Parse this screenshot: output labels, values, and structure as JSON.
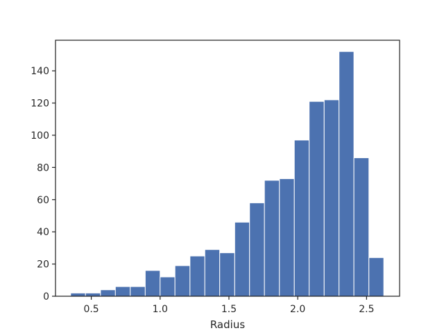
{
  "chart_data": {
    "type": "bar",
    "subtype": "histogram",
    "title": "",
    "xlabel": "Radius",
    "ylabel": "",
    "bins": [
      {
        "x0": 0.35,
        "x1": 0.458,
        "count": 2
      },
      {
        "x0": 0.458,
        "x1": 0.567,
        "count": 2
      },
      {
        "x0": 0.567,
        "x1": 0.675,
        "count": 4
      },
      {
        "x0": 0.675,
        "x1": 0.783,
        "count": 6
      },
      {
        "x0": 0.783,
        "x1": 0.892,
        "count": 6
      },
      {
        "x0": 0.892,
        "x1": 1.0,
        "count": 16
      },
      {
        "x0": 1.0,
        "x1": 1.108,
        "count": 12
      },
      {
        "x0": 1.108,
        "x1": 1.217,
        "count": 19
      },
      {
        "x0": 1.217,
        "x1": 1.325,
        "count": 25
      },
      {
        "x0": 1.325,
        "x1": 1.433,
        "count": 29
      },
      {
        "x0": 1.433,
        "x1": 1.542,
        "count": 27
      },
      {
        "x0": 1.542,
        "x1": 1.65,
        "count": 46
      },
      {
        "x0": 1.65,
        "x1": 1.758,
        "count": 58
      },
      {
        "x0": 1.758,
        "x1": 1.867,
        "count": 72
      },
      {
        "x0": 1.867,
        "x1": 1.975,
        "count": 73
      },
      {
        "x0": 1.975,
        "x1": 2.083,
        "count": 97
      },
      {
        "x0": 2.083,
        "x1": 2.192,
        "count": 121
      },
      {
        "x0": 2.192,
        "x1": 2.3,
        "count": 122
      },
      {
        "x0": 2.3,
        "x1": 2.408,
        "count": 152
      },
      {
        "x0": 2.408,
        "x1": 2.517,
        "count": 86
      },
      {
        "x0": 2.517,
        "x1": 2.625,
        "count": 24
      }
    ],
    "xlim": [
      0.24,
      2.74
    ],
    "ylim": [
      0,
      159
    ],
    "xticks": [
      0.5,
      1.0,
      1.5,
      2.0,
      2.5
    ],
    "xtick_labels": [
      "0.5",
      "1.0",
      "1.5",
      "2.0",
      "2.5"
    ],
    "yticks": [
      0,
      20,
      40,
      60,
      80,
      100,
      120,
      140
    ],
    "ytick_labels": [
      "0",
      "20",
      "40",
      "60",
      "80",
      "100",
      "120",
      "140"
    ],
    "grid": false,
    "legend": "none",
    "colors": {
      "bar": "#4c72b0",
      "bar_edge": "#ffffff",
      "axes": "#262626"
    }
  }
}
